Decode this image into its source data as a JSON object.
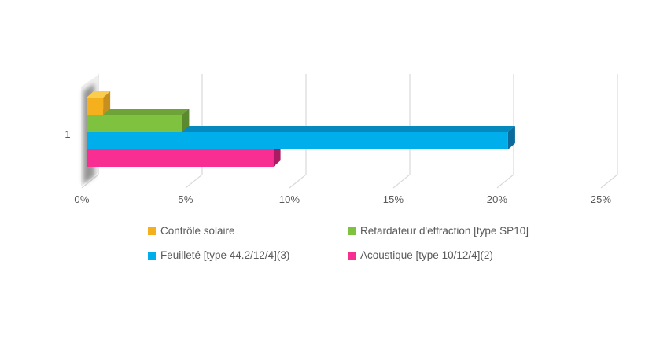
{
  "chart_data": {
    "type": "bar",
    "orientation": "horizontal",
    "style": "3d",
    "title": "",
    "xlabel": "",
    "ylabel": "",
    "categories": [
      "1"
    ],
    "series": [
      {
        "name": "Contrôle solaire",
        "values": [
          0.8
        ],
        "color": "#F5B11D",
        "color_top": "#FBCD4E",
        "color_side": "#C68F1E"
      },
      {
        "name": "Retardateur d'effraction [type SP10]",
        "values": [
          4.6
        ],
        "color": "#7EC23F",
        "color_top": "#6EA437",
        "color_side": "#5B8A2E"
      },
      {
        "name": "Feuilleté [type 44.2/12/4](3)",
        "values": [
          20.3
        ],
        "color": "#00AEEC",
        "color_top": "#0689BC",
        "color_side": "#0A6B9C"
      },
      {
        "name": "Acoustique [type 10/12/4](2)",
        "values": [
          9.0
        ],
        "color": "#F82E92",
        "color_top": "#C92374",
        "color_side": "#AC1A64"
      }
    ],
    "xlim": [
      0,
      25
    ],
    "x_ticks": [
      "0%",
      "5%",
      "10%",
      "15%",
      "20%",
      "25%"
    ],
    "x_tick_values": [
      0,
      5,
      10,
      15,
      20,
      25
    ],
    "grid": true,
    "legend_position": "bottom"
  },
  "colors": {
    "background": "#FFFFFF",
    "axis_text": "#595959",
    "gridline": "#D9D9D9",
    "wall_fill": "#EFEFEF",
    "wall_shadow": "#7F7F7F"
  }
}
